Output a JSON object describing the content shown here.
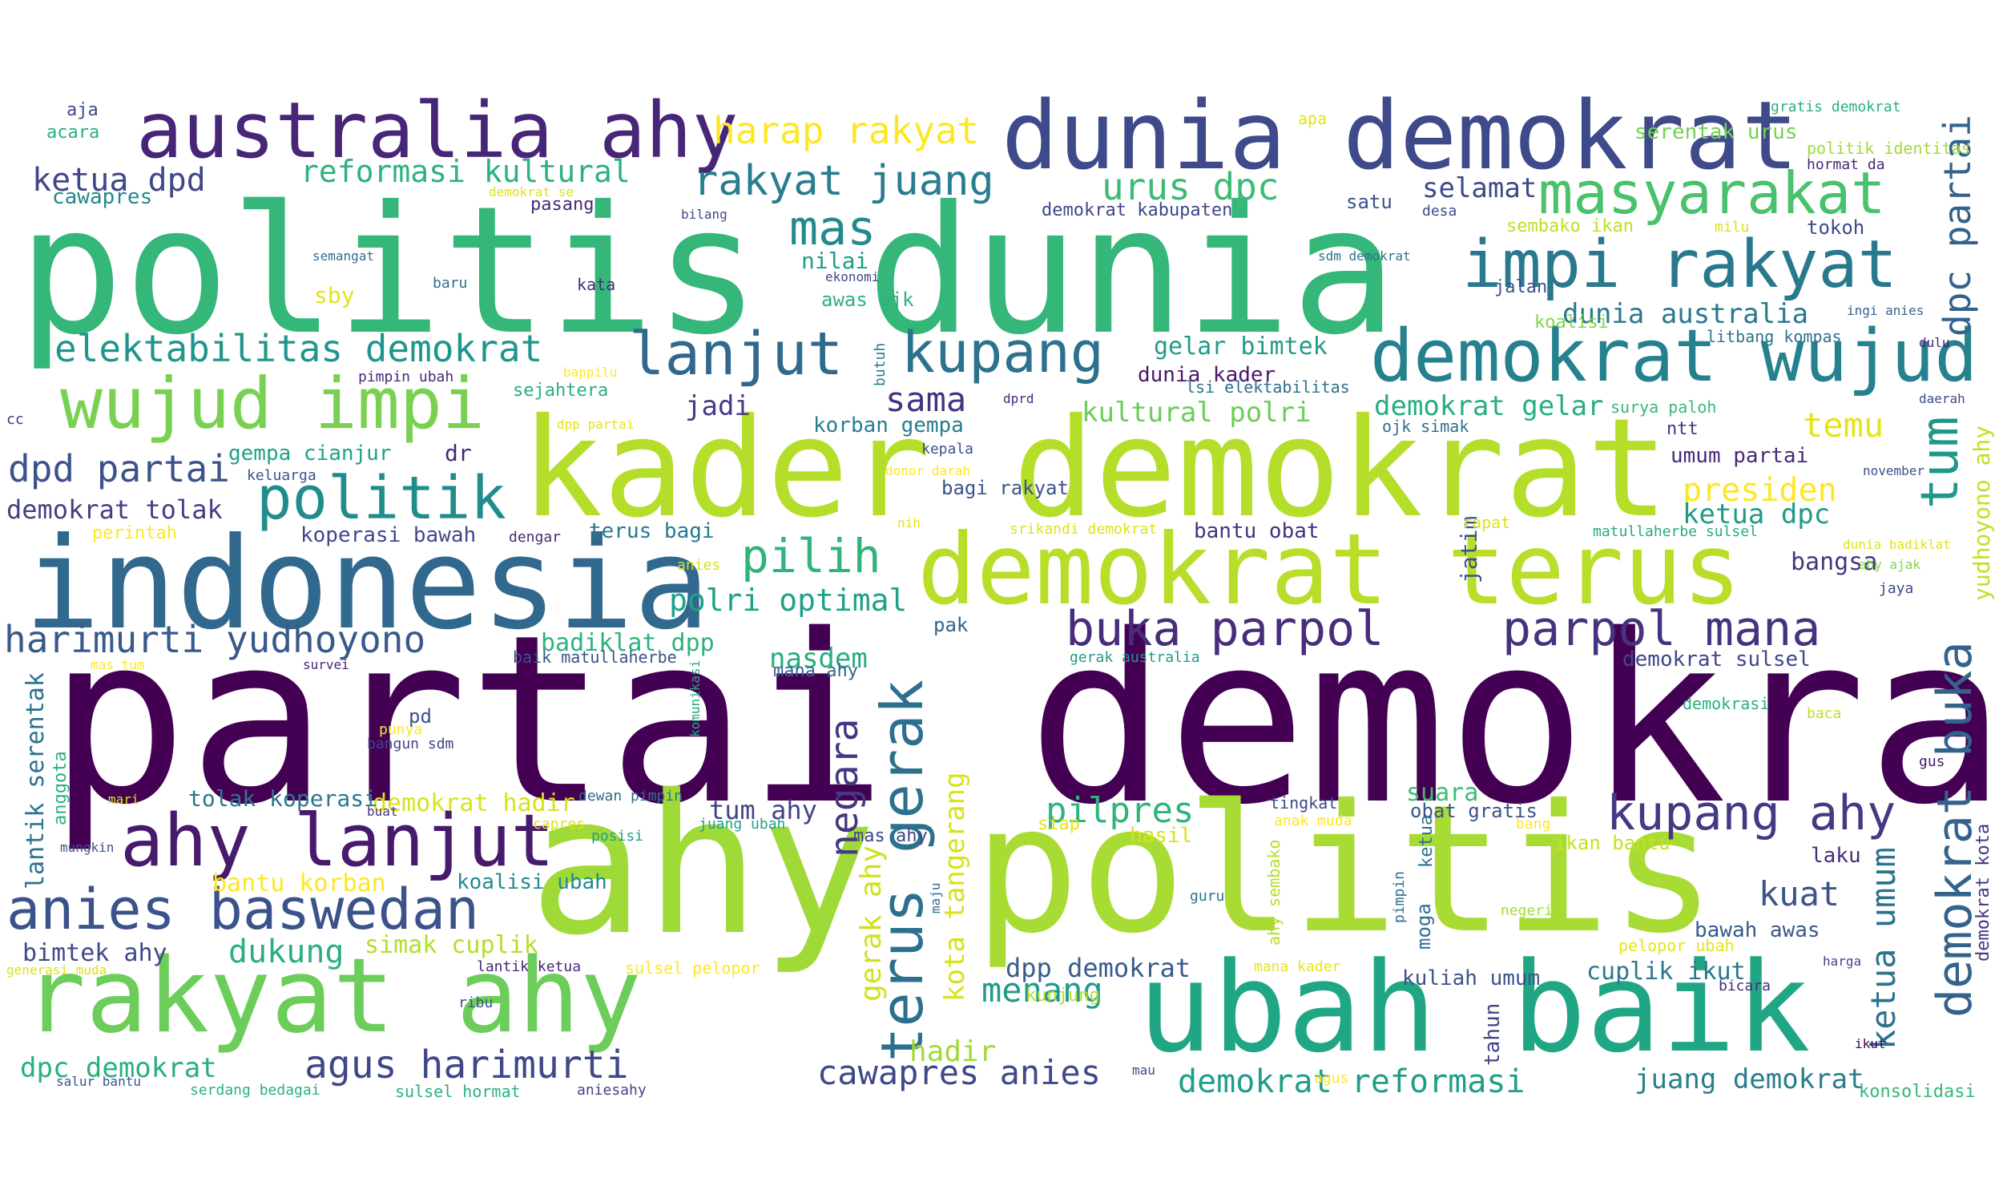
{
  "words": [
    {
      "id": "w1",
      "t": "partai demokrat",
      "c": "#440154"
    },
    {
      "id": "w2",
      "t": "politis dunia",
      "c": "#35b779"
    },
    {
      "id": "w3",
      "t": "kader demokrat",
      "c": "#b5de2b"
    },
    {
      "id": "w4",
      "t": "ahy",
      "c": "#a0da39"
    },
    {
      "id": "w5",
      "t": "politis",
      "c": "#a8db34"
    },
    {
      "id": "w6",
      "t": "indonesia",
      "c": "#31688e"
    },
    {
      "id": "w7",
      "t": "demokrat terus",
      "c": "#b8de29"
    },
    {
      "id": "w8",
      "t": "ubah baik",
      "c": "#21a685"
    },
    {
      "id": "w9",
      "t": "dunia demokrat",
      "c": "#3e4a89"
    },
    {
      "id": "w10",
      "t": "rakyat ahy",
      "c": "#6ccd5a"
    },
    {
      "id": "w11",
      "t": "australia ahy",
      "c": "#482677"
    },
    {
      "id": "w12",
      "t": "impi rakyat",
      "c": "#2a788e"
    },
    {
      "id": "w13",
      "t": "demokrat wujud",
      "c": "#26818e"
    },
    {
      "id": "w14",
      "t": "wujud impi",
      "c": "#7ad151"
    },
    {
      "id": "w15",
      "t": "ahy lanjut",
      "c": "#481a6c"
    },
    {
      "id": "w16",
      "t": "anies baswedan",
      "c": "#3b528b"
    },
    {
      "id": "w17",
      "t": "masyarakat",
      "c": "#4ac16d"
    },
    {
      "id": "w18",
      "t": "politik",
      "c": "#228c8d"
    },
    {
      "id": "w19",
      "t": "lanjut",
      "c": "#31688e"
    },
    {
      "id": "w20",
      "t": "kupang",
      "c": "#2c728e"
    },
    {
      "id": "w21",
      "t": "buka parpol",
      "c": "#472d7b"
    },
    {
      "id": "w22",
      "t": "parpol mana",
      "c": "#46327e"
    },
    {
      "id": "w23",
      "t": "kupang ahy",
      "c": "#443983"
    },
    {
      "id": "w24",
      "t": "pilih",
      "c": "#2fb47c"
    },
    {
      "id": "w25",
      "t": "rakyat juang",
      "c": "#287d8e"
    },
    {
      "id": "w26",
      "t": "mas",
      "c": "#23898e"
    },
    {
      "id": "w27",
      "t": "terus gerak",
      "c": "#2d708e"
    },
    {
      "id": "w28",
      "t": "demokrat buka",
      "c": "#33638d"
    },
    {
      "id": "w29",
      "t": "agus harimurti",
      "c": "#3f4788"
    },
    {
      "id": "w30",
      "t": "harimurti yudhoyono",
      "c": "#38598c"
    },
    {
      "id": "w31",
      "t": "elektabilitas demokrat",
      "c": "#1f968b"
    },
    {
      "id": "w32",
      "t": "harap rakyat",
      "c": "#fde725"
    },
    {
      "id": "w33",
      "t": "dpd partai",
      "c": "#3b528b"
    },
    {
      "id": "w34",
      "t": "urus dpc",
      "c": "#3cbb75"
    },
    {
      "id": "w35",
      "t": "tum",
      "c": "#1f988b"
    },
    {
      "id": "w36",
      "t": "dpc partai",
      "c": "#33638d"
    },
    {
      "id": "w37",
      "t": "cawapres anies",
      "c": "#3e4989"
    },
    {
      "id": "w38",
      "t": "demokrat reformasi",
      "c": "#1f9e89"
    },
    {
      "id": "w39",
      "t": "negara",
      "c": "#453781"
    },
    {
      "id": "w40",
      "t": "dukung",
      "c": "#2ab07f"
    },
    {
      "id": "w41",
      "t": "polri optimal",
      "c": "#1fa188"
    },
    {
      "id": "w42",
      "t": "pilpres",
      "c": "#2fb47c"
    },
    {
      "id": "w43",
      "t": "menang",
      "c": "#1e9b8a"
    },
    {
      "id": "w44",
      "t": "kuat",
      "c": "#3b528b"
    },
    {
      "id": "w45",
      "t": "presiden",
      "c": "#fde725"
    },
    {
      "id": "w46",
      "t": "reformasi kultural",
      "c": "#2db27d"
    },
    {
      "id": "w47",
      "t": "ketua dpd",
      "c": "#3f4788"
    },
    {
      "id": "w48",
      "t": "ketua umum",
      "c": "#2c728e"
    },
    {
      "id": "w49",
      "t": "dpc demokrat",
      "c": "#29af7f"
    },
    {
      "id": "w50",
      "t": "kota tangerang",
      "c": "#d8e219"
    },
    {
      "id": "w51",
      "t": "sama",
      "c": "#46337f"
    },
    {
      "id": "w52",
      "t": "kultural polri",
      "c": "#6ccd5a"
    },
    {
      "id": "w53",
      "t": "juang demokrat",
      "c": "#277f8e"
    },
    {
      "id": "w54",
      "t": "dpp demokrat",
      "c": "#365d8d"
    },
    {
      "id": "w55",
      "t": "temu",
      "c": "#e5e419"
    },
    {
      "id": "w56",
      "t": "gerak ahy",
      "c": "#d0e11c"
    },
    {
      "id": "w57",
      "t": "demokrat tolak",
      "c": "#424086"
    },
    {
      "id": "w58",
      "t": "bimtek ahy",
      "c": "#3e4a89"
    },
    {
      "id": "w59",
      "t": "tum ahy",
      "c": "#414487"
    },
    {
      "id": "w60",
      "t": "yudhoyono ahy",
      "c": "#c2df23"
    },
    {
      "id": "w61",
      "t": "demokrat gelar",
      "c": "#27ad81"
    },
    {
      "id": "w62",
      "t": "ketua dpc",
      "c": "#1f9a8a"
    },
    {
      "id": "w63",
      "t": "simak cuplik",
      "c": "#b5de2b"
    },
    {
      "id": "w64",
      "t": "bantu korban",
      "c": "#fde725"
    },
    {
      "id": "w65",
      "t": "dunia australia",
      "c": "#2a788e"
    },
    {
      "id": "w66",
      "t": "selamat",
      "c": "#3e4989"
    },
    {
      "id": "w67",
      "t": "nasdem",
      "c": "#26ad81"
    },
    {
      "id": "w68",
      "t": "jadi",
      "c": "#443b84"
    },
    {
      "id": "w69",
      "t": "lantik serentak",
      "c": "#2c728e"
    },
    {
      "id": "w70",
      "t": "demokrat hadir",
      "c": "#d8e219"
    },
    {
      "id": "w71",
      "t": "suara",
      "c": "#3dbc74"
    },
    {
      "id": "w72",
      "t": "bangsa",
      "c": "#453781"
    },
    {
      "id": "w73",
      "t": "gelar bimtek",
      "c": "#1f9a8a"
    },
    {
      "id": "w74",
      "t": "badiklat dpp",
      "c": "#2db27d"
    },
    {
      "id": "w75",
      "t": "tolak koperasi",
      "c": "#2a788e"
    },
    {
      "id": "w76",
      "t": "hadir",
      "c": "#a0da39"
    },
    {
      "id": "w77",
      "t": "bawah awas",
      "c": "#38598c"
    },
    {
      "id": "w78",
      "t": "cuplik ikut",
      "c": "#2a788e"
    },
    {
      "id": "w79",
      "t": "demokrat sulsel",
      "c": "#3f4788"
    },
    {
      "id": "w80",
      "t": "koalisi ubah",
      "c": "#238a8d"
    },
    {
      "id": "w81",
      "t": "koperasi bawah",
      "c": "#3e4989"
    },
    {
      "id": "w82",
      "t": "terus bagi",
      "c": "#2a788e"
    },
    {
      "id": "w83",
      "t": "kuliah umum",
      "c": "#3b528b"
    },
    {
      "id": "w84",
      "t": "umum partai",
      "c": "#482878"
    },
    {
      "id": "w85",
      "t": "demokrat kota",
      "c": "#453781"
    },
    {
      "id": "w86",
      "t": "serentak urus",
      "c": "#73d056"
    },
    {
      "id": "w87",
      "t": "awas ojk",
      "c": "#2db27d"
    },
    {
      "id": "w88",
      "t": "satu",
      "c": "#3b528b"
    },
    {
      "id": "w89",
      "t": "laku",
      "c": "#472d7b"
    },
    {
      "id": "w90",
      "t": "korban gempa",
      "c": "#287d8e"
    },
    {
      "id": "w91",
      "t": "nilai",
      "c": "#1f9e89"
    },
    {
      "id": "w92",
      "t": "gempa cianjur",
      "c": "#1fa188"
    },
    {
      "id": "w93",
      "t": "obat gratis",
      "c": "#3b528b"
    },
    {
      "id": "w94",
      "t": "bagi rakyat",
      "c": "#3b528b"
    },
    {
      "id": "w95",
      "t": "dunia kader",
      "c": "#48186a"
    },
    {
      "id": "w96",
      "t": "bantu obat",
      "c": "#46327e"
    },
    {
      "id": "w97",
      "t": "jatim",
      "c": "#3b528b"
    },
    {
      "id": "w98",
      "t": "ikan bantu",
      "c": "#c8e020"
    },
    {
      "id": "w99",
      "t": "hasil",
      "c": "#d8e219"
    },
    {
      "id": "w100",
      "t": "tokoh",
      "c": "#3e4989"
    },
    {
      "id": "w101",
      "t": "cawapres",
      "c": "#24878e"
    },
    {
      "id": "w102",
      "t": "demokrat kabupaten",
      "c": "#3f4788"
    },
    {
      "id": "w103",
      "t": "sby",
      "c": "#e2e418"
    },
    {
      "id": "w104",
      "t": "perintah",
      "c": "#fde725"
    },
    {
      "id": "w105",
      "t": "pak",
      "c": "#33638d"
    },
    {
      "id": "w106",
      "t": "dr",
      "c": "#482677"
    },
    {
      "id": "w107",
      "t": "anggota",
      "c": "#2db27d"
    },
    {
      "id": "w108",
      "t": "moga",
      "c": "#2c728e"
    },
    {
      "id": "w109",
      "t": "tahun",
      "c": "#414487"
    },
    {
      "id": "w110",
      "t": "kunjung",
      "c": "#b5de2b"
    },
    {
      "id": "w111",
      "t": "mana ahy",
      "c": "#33638d"
    },
    {
      "id": "w112",
      "t": "mas ahy",
      "c": "#3f4788"
    },
    {
      "id": "w113",
      "t": "jalan",
      "c": "#3b528b"
    },
    {
      "id": "w114",
      "t": "pelopor ubah",
      "c": "#e7e419"
    },
    {
      "id": "w115",
      "t": "sembako ikan",
      "c": "#bddf26"
    },
    {
      "id": "w116",
      "t": "siap",
      "c": "#e7e419"
    },
    {
      "id": "w117",
      "t": "politik identitas",
      "c": "#a2da37"
    },
    {
      "id": "w118",
      "t": "tingkat",
      "c": "#3e4a89"
    },
    {
      "id": "w119",
      "t": "sejahtera",
      "c": "#29af7f"
    },
    {
      "id": "w120",
      "t": "koalisi",
      "c": "#86d549"
    },
    {
      "id": "w121",
      "t": "konsolidasi",
      "c": "#35b779"
    },
    {
      "id": "w122",
      "t": "surya paloh",
      "c": "#38b977"
    },
    {
      "id": "w123",
      "t": "kata",
      "c": "#472d7b"
    },
    {
      "id": "w124",
      "t": "ketua",
      "c": "#2d708e"
    },
    {
      "id": "w125",
      "t": "ahy sembako",
      "c": "#b5de2b"
    },
    {
      "id": "w126",
      "t": "rapat",
      "c": "#dde318"
    },
    {
      "id": "w127",
      "t": "litbang kompas",
      "c": "#2c728e"
    },
    {
      "id": "w128",
      "t": "ntt",
      "c": "#453781"
    },
    {
      "id": "w129",
      "t": "jaya",
      "c": "#3e4989"
    },
    {
      "id": "w130",
      "t": "ojk simak",
      "c": "#2d708e"
    },
    {
      "id": "w131",
      "t": "apa",
      "c": "#e2e418"
    },
    {
      "id": "w132",
      "t": "pasang",
      "c": "#482878"
    },
    {
      "id": "w133",
      "t": "baik matullaherbe",
      "c": "#3b528b"
    },
    {
      "id": "w134",
      "t": "lsi elektabilitas",
      "c": "#2d708e"
    },
    {
      "id": "w135",
      "t": "bangun sdm",
      "c": "#414487"
    },
    {
      "id": "w136",
      "t": "sulsel pelopor",
      "c": "#fde725"
    },
    {
      "id": "w137",
      "t": "ekonomi",
      "c": "#3e4989"
    },
    {
      "id": "w138",
      "t": "ingi anies",
      "c": "#33638d"
    },
    {
      "id": "w139",
      "t": "dulu",
      "c": "#482173"
    },
    {
      "id": "w140",
      "t": "daerah",
      "c": "#3e4989"
    },
    {
      "id": "w141",
      "t": "bicara",
      "c": "#482878"
    },
    {
      "id": "w142",
      "t": "posisi",
      "c": "#1f9e89"
    },
    {
      "id": "w143",
      "t": "gus",
      "c": "#48186a"
    },
    {
      "id": "w144",
      "t": "baca",
      "c": "#bddf26"
    },
    {
      "id": "w145",
      "t": "ikut",
      "c": "#440154"
    },
    {
      "id": "w146",
      "t": "anak muda",
      "c": "#fde725"
    },
    {
      "id": "w147",
      "t": "pimpin",
      "c": "#2d708e"
    },
    {
      "id": "w148",
      "t": "negeri",
      "c": "#a5db36"
    },
    {
      "id": "w149",
      "t": "lantik ketua",
      "c": "#482878"
    },
    {
      "id": "w150",
      "t": "salur bantu",
      "c": "#3b528b"
    },
    {
      "id": "w151",
      "t": "serdang bedagai",
      "c": "#2ab07f"
    },
    {
      "id": "w152",
      "t": "sulsel hormat",
      "c": "#2ab07f"
    },
    {
      "id": "w153",
      "t": "aniesahy",
      "c": "#414487"
    },
    {
      "id": "w154",
      "t": "mau",
      "c": "#3e4989"
    },
    {
      "id": "w155",
      "t": "agus",
      "c": "#fde725"
    },
    {
      "id": "w156",
      "t": "generasi muda",
      "c": "#d8e219"
    },
    {
      "id": "w157",
      "t": "ribu",
      "c": "#3b528b"
    },
    {
      "id": "w158",
      "t": "maju",
      "c": "#2d708e"
    },
    {
      "id": "w159",
      "t": "guru",
      "c": "#2c728e"
    },
    {
      "id": "w160",
      "t": "mungkin",
      "c": "#3b528b"
    },
    {
      "id": "w161",
      "t": "buat",
      "c": "#46327e"
    },
    {
      "id": "w162",
      "t": "capres",
      "c": "#dde318"
    },
    {
      "id": "w163",
      "t": "dewan pimpin",
      "c": "#2d708e"
    },
    {
      "id": "w164",
      "t": "juang ubah",
      "c": "#1fa188"
    },
    {
      "id": "w165",
      "t": "bang",
      "c": "#fde725"
    },
    {
      "id": "w166",
      "t": "harga",
      "c": "#414487"
    },
    {
      "id": "w167",
      "t": "mari",
      "c": "#dde318"
    },
    {
      "id": "w168",
      "t": "punya",
      "c": "#fde725"
    },
    {
      "id": "w169",
      "t": "komunikasi",
      "c": "#22a884"
    },
    {
      "id": "w170",
      "t": "demokrasi",
      "c": "#2ab07f"
    },
    {
      "id": "w171",
      "t": "pd",
      "c": "#3b528b"
    },
    {
      "id": "w172",
      "t": "survei",
      "c": "#482878"
    },
    {
      "id": "w173",
      "t": "mas tum",
      "c": "#fde725"
    },
    {
      "id": "w174",
      "t": "dunia badiklat",
      "c": "#dde318"
    },
    {
      "id": "w175",
      "t": "ahy ajak",
      "c": "#84d44b"
    },
    {
      "id": "w176",
      "t": "gerak australia",
      "c": "#1f9a8a"
    },
    {
      "id": "w177",
      "t": "mana kader",
      "c": "#e5e419"
    },
    {
      "id": "w178",
      "t": "matullaherbe sulsel",
      "c": "#25ab82"
    },
    {
      "id": "w179",
      "t": "srikandi demokrat",
      "c": "#dde318"
    },
    {
      "id": "w180",
      "t": "anies",
      "c": "#d8e219"
    },
    {
      "id": "w181",
      "t": "dengar",
      "c": "#482878"
    },
    {
      "id": "w182",
      "t": "nih",
      "c": "#e7e419"
    },
    {
      "id": "w183",
      "t": "donor darah",
      "c": "#fde725"
    },
    {
      "id": "w184",
      "t": "kepala",
      "c": "#3b528b"
    },
    {
      "id": "w185",
      "t": "keluarga",
      "c": "#3b528b"
    },
    {
      "id": "w186",
      "t": "pimpin ubah",
      "c": "#482878"
    },
    {
      "id": "w187",
      "t": "bappilu",
      "c": "#fde725"
    },
    {
      "id": "w188",
      "t": "dpp partai",
      "c": "#e2e418"
    },
    {
      "id": "w189",
      "t": "cc",
      "c": "#46327e"
    },
    {
      "id": "w190",
      "t": "butuh",
      "c": "#2a788e"
    },
    {
      "id": "w191",
      "t": "dprd",
      "c": "#482878"
    },
    {
      "id": "w192",
      "t": "november",
      "c": "#3b528b"
    },
    {
      "id": "w193",
      "t": "sdm demokrat",
      "c": "#2d708e"
    },
    {
      "id": "w194",
      "t": "desa",
      "c": "#3e4989"
    },
    {
      "id": "w195",
      "t": "milu",
      "c": "#d8e219"
    },
    {
      "id": "w196",
      "t": "semangat",
      "c": "#2d708e"
    },
    {
      "id": "w197",
      "t": "baru",
      "c": "#2d708e"
    },
    {
      "id": "w198",
      "t": "aja",
      "c": "#3e4989"
    },
    {
      "id": "w199",
      "t": "acara",
      "c": "#29af7f"
    },
    {
      "id": "w200",
      "t": "bilang",
      "c": "#3e4989"
    },
    {
      "id": "w201",
      "t": "demokrat se",
      "c": "#dde318"
    },
    {
      "id": "w202",
      "t": "gratis demokrat",
      "c": "#2ab07f"
    },
    {
      "id": "w203",
      "t": "hormat da",
      "c": "#482878"
    }
  ]
}
